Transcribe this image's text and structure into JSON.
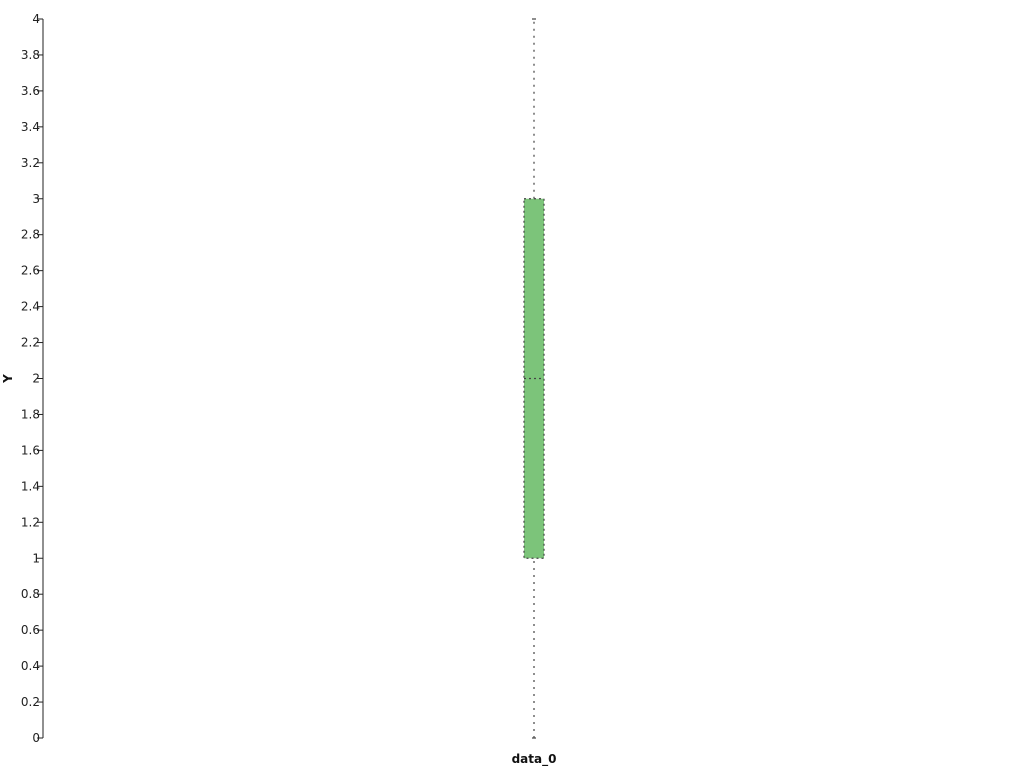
{
  "chart_data": {
    "type": "box",
    "xlabel": "",
    "ylabel": "Y",
    "ylim": [
      0,
      4
    ],
    "yticks": [
      0,
      0.2,
      0.4,
      0.6,
      0.8,
      1,
      1.2,
      1.4,
      1.6,
      1.8,
      2,
      2.2,
      2.4,
      2.6,
      2.8,
      3,
      3.2,
      3.4,
      3.6,
      3.8,
      4
    ],
    "categories": [
      "data_0"
    ],
    "series": [
      {
        "category": "data_0",
        "min": 0,
        "q1": 1,
        "median": 2,
        "q3": 3,
        "max": 4
      }
    ],
    "grid": false,
    "legend": "none",
    "colors": {
      "box_fill": "#7cc47a",
      "box_stroke": "#444444",
      "axis": "#222222"
    }
  }
}
